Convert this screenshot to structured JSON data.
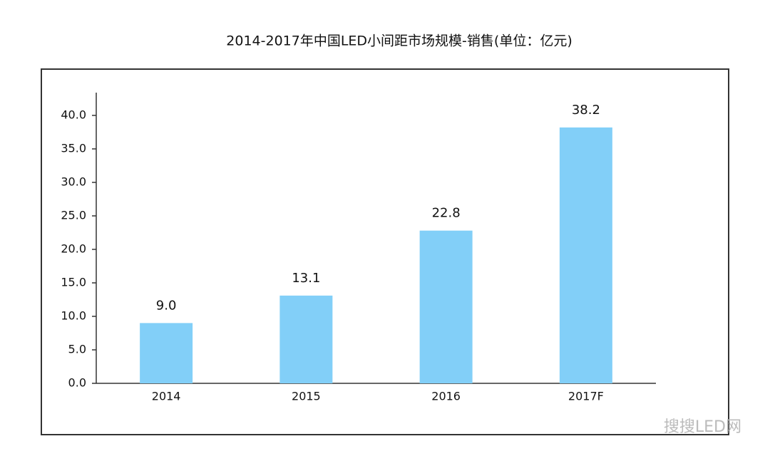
{
  "chart_data": {
    "type": "bar",
    "title": "2014-2017年中国LED小间距市场规模-销售(单位：亿元)",
    "categories": [
      "2014",
      "2015",
      "2016",
      "2017F"
    ],
    "values": [
      9.0,
      13.1,
      22.8,
      38.2
    ],
    "value_labels": [
      "9.0",
      "13.1",
      "22.8",
      "38.2"
    ],
    "color": "#82cff8",
    "ylim": [
      0,
      43.4
    ],
    "yticks": [
      {
        "value": 0,
        "label": "0.0"
      },
      {
        "value": 5,
        "label": "5.0"
      },
      {
        "value": 10,
        "label": "10.0"
      },
      {
        "value": 15,
        "label": "15.0"
      },
      {
        "value": 20,
        "label": "20.0"
      },
      {
        "value": 25,
        "label": "25.0"
      },
      {
        "value": 30,
        "label": "30.0"
      },
      {
        "value": 35,
        "label": "35.0"
      },
      {
        "value": 40,
        "label": "40.0"
      }
    ],
    "watermark": "搜搜LED网"
  }
}
